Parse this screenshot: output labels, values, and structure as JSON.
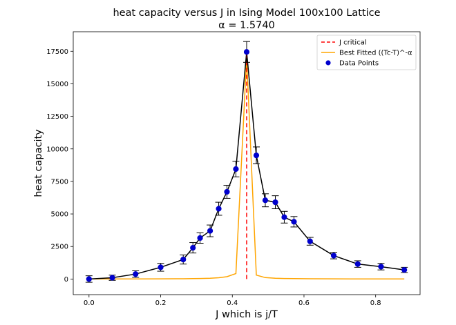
{
  "chart_data": {
    "type": "scatter",
    "title": "heat capacity versus J in Ising Model 100x100 Lattice",
    "subtitle": "α = 1.5740",
    "xlabel": "J which is j/T",
    "ylabel": "heat capacity",
    "xlim": [
      -0.044,
      0.924
    ],
    "ylim": [
      -1200,
      19000
    ],
    "xticks": [
      0.0,
      0.2,
      0.4,
      0.6,
      0.8
    ],
    "xtick_labels": [
      "0.0",
      "0.2",
      "0.4",
      "0.6",
      "0.8"
    ],
    "yticks": [
      0,
      2500,
      5000,
      7500,
      10000,
      12500,
      15000,
      17500
    ],
    "ytick_labels": [
      "0",
      "2500",
      "5000",
      "7500",
      "10000",
      "12500",
      "15000",
      "17500"
    ],
    "grid": false,
    "legend_position": "top-right",
    "series": [
      {
        "name": "Data Points",
        "kind": "scatter-with-errorbars",
        "color": "#0000cd",
        "line_color": "#000000",
        "x": [
          0.0,
          0.065,
          0.13,
          0.2,
          0.263,
          0.29,
          0.31,
          0.338,
          0.362,
          0.385,
          0.41,
          0.44,
          0.467,
          0.492,
          0.52,
          0.545,
          0.572,
          0.617,
          0.683,
          0.75,
          0.815,
          0.88
        ],
        "y": [
          0,
          100,
          380,
          900,
          1500,
          2400,
          3150,
          3700,
          5400,
          6700,
          8450,
          17450,
          9500,
          6050,
          5900,
          4750,
          4400,
          2900,
          1800,
          1150,
          950,
          700
        ],
        "yerr": [
          250,
          200,
          250,
          300,
          350,
          400,
          400,
          450,
          500,
          500,
          600,
          800,
          650,
          500,
          500,
          450,
          400,
          300,
          250,
          250,
          250,
          200
        ]
      },
      {
        "name": "Best Fitted ((Tc-T)^-α",
        "kind": "line",
        "color": "#ffa500",
        "x": [
          0.0,
          0.065,
          0.13,
          0.2,
          0.263,
          0.29,
          0.31,
          0.338,
          0.362,
          0.385,
          0.41,
          0.44,
          0.467,
          0.492,
          0.52,
          0.545,
          0.572,
          0.617,
          0.683,
          0.75,
          0.815,
          0.88
        ],
        "y": [
          3,
          4,
          6,
          10,
          20,
          30,
          40,
          60,
          100,
          180,
          420,
          17000,
          300,
          110,
          60,
          40,
          30,
          18,
          10,
          6,
          4,
          3
        ]
      },
      {
        "name": "J critical",
        "kind": "vline",
        "color": "#ff0000",
        "x": 0.44,
        "y_range": [
          0,
          17500
        ]
      }
    ]
  }
}
